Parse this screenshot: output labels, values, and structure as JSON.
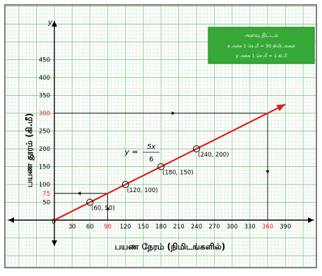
{
  "chart_data": {
    "type": "line",
    "xlabel": "பயண நேரம் (நிமிடங்களில்)",
    "ylabel": "பயண தூரம் (கி.மீ)",
    "x_ticks": [
      0,
      30,
      60,
      90,
      120,
      150,
      180,
      210,
      240,
      270,
      300,
      330,
      360,
      390
    ],
    "y_ticks": [
      0,
      50,
      75,
      100,
      150,
      200,
      250,
      300,
      350,
      400,
      450
    ],
    "xlim": [
      -60,
      420
    ],
    "ylim": [
      -100,
      550
    ],
    "origin_label": "0",
    "y_axis_letter": "y",
    "equation": {
      "lhs": "y",
      "eq": "=",
      "num": "5x",
      "den": "6"
    },
    "series": [
      {
        "color": "#e02020",
        "x": [
          0,
          390
        ],
        "y": [
          0,
          325
        ]
      }
    ],
    "points": [
      {
        "x": 60,
        "y": 50,
        "label": "(60, 50)"
      },
      {
        "x": 120,
        "y": 100,
        "label": "(120, 100)"
      },
      {
        "x": 180,
        "y": 150,
        "label": "(180, 150)"
      },
      {
        "x": 240,
        "y": 200,
        "label": "(240, 200)"
      }
    ],
    "highlighted_ticks": {
      "x": [
        90,
        360
      ],
      "y": [
        75,
        300
      ],
      "color": "#e02020"
    },
    "scale_box": {
      "title": "அளவு திட்டம்",
      "lines": [
        "x அச்சு 1 செ.மீ = 30 நிமிடங்கள்",
        "y அச்சு 1 செ.மீ = 1 கி.மீ"
      ]
    },
    "grid": true,
    "colors": {
      "grid_minor": "#cfe6cf",
      "grid_major": "#8fc98f",
      "line": "#e02020",
      "box_fill": "#37a837",
      "frame": "#555555"
    }
  }
}
